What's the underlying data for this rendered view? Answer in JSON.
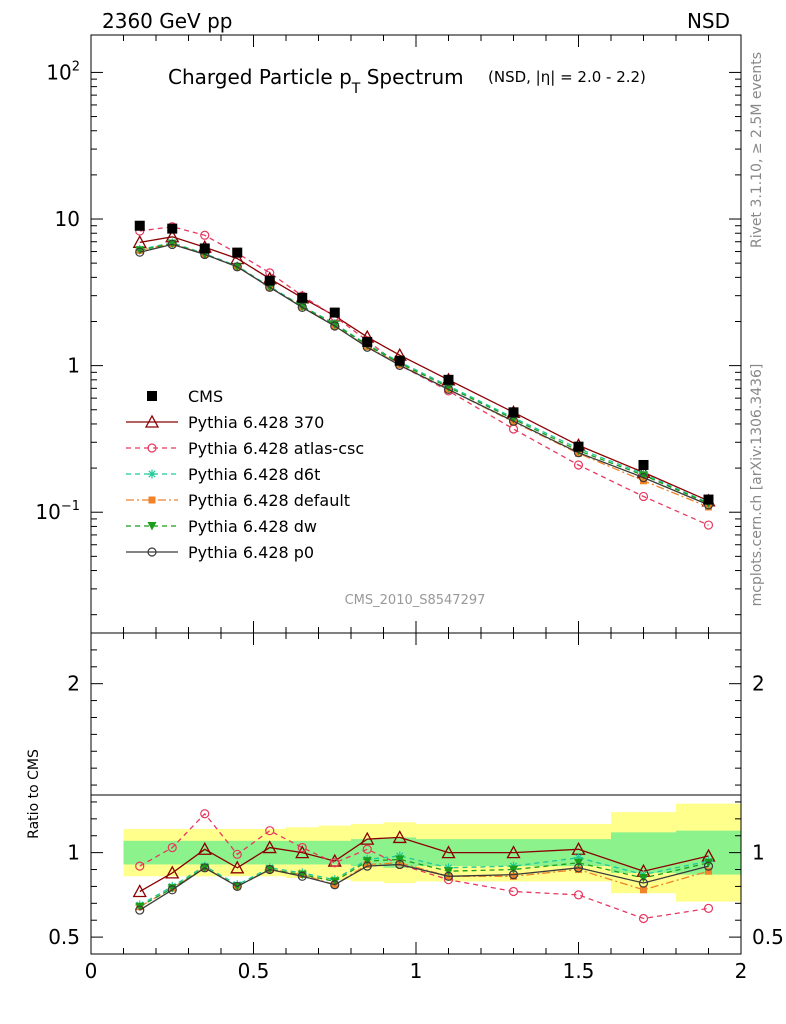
{
  "header": {
    "left": "2360 GeV pp",
    "right": "NSD"
  },
  "side_labels": {
    "rivet": "Rivet 3.1.10, ≥ 2.5M events",
    "mcplots": "mcplots.cern.ch [arXiv:1306.3436]"
  },
  "chart_data": {
    "type": "line",
    "title": "Charged Particle p",
    "title_subscript": "T",
    "title_suffix": " Spectrum",
    "title_note": "(NSD, |η| = 2.0 - 2.2)",
    "analysis_id": "CMS_2010_S8547297",
    "ratio_ylabel": "Ratio to CMS",
    "x_range": [
      0,
      2
    ],
    "x_ticks": [
      {
        "value": 0,
        "label": "0"
      },
      {
        "value": 0.5,
        "label": "0.5"
      },
      {
        "value": 1,
        "label": "1"
      },
      {
        "value": 1.5,
        "label": "1.5"
      },
      {
        "value": 2,
        "label": "2"
      }
    ],
    "main_y_scale": "log",
    "main_y_range": [
      0.015,
      180
    ],
    "main_y_ticks": [
      {
        "value": 100,
        "base": "10",
        "exp": "2"
      },
      {
        "value": 10,
        "base": "10",
        "exp": ""
      },
      {
        "value": 1,
        "base": "1",
        "exp": ""
      },
      {
        "value": 0.1,
        "base": "10",
        "exp": "−1"
      }
    ],
    "ratio_y_range": [
      0.4,
      2.3
    ],
    "ratio_y_ticks": [
      {
        "value": 0.5,
        "label": "0.5"
      },
      {
        "value": 1,
        "label": "1"
      },
      {
        "value": 2,
        "label": "2"
      }
    ],
    "legend_position": "middle-left",
    "x": [
      0.15,
      0.25,
      0.35,
      0.45,
      0.55,
      0.65,
      0.75,
      0.85,
      0.95,
      1.1,
      1.3,
      1.5,
      1.7,
      1.9
    ],
    "bin_edges": [
      0.1,
      0.2,
      0.3,
      0.4,
      0.5,
      0.6,
      0.7,
      0.8,
      0.9,
      1.0,
      1.2,
      1.4,
      1.6,
      1.8,
      2.0
    ],
    "data": {
      "name": "CMS",
      "color": "#000000",
      "values": [
        9.0,
        8.6,
        6.3,
        5.9,
        3.8,
        2.9,
        2.3,
        1.45,
        1.08,
        0.8,
        0.48,
        0.28,
        0.21,
        0.122
      ],
      "band_inner": [
        0.07,
        0.07,
        0.07,
        0.07,
        0.07,
        0.07,
        0.07,
        0.08,
        0.09,
        0.08,
        0.08,
        0.08,
        0.12,
        0.13
      ],
      "band_outer": [
        0.14,
        0.14,
        0.14,
        0.14,
        0.14,
        0.15,
        0.16,
        0.17,
        0.18,
        0.17,
        0.17,
        0.17,
        0.24,
        0.29
      ]
    },
    "series": [
      {
        "name": "Pythia 6.428 370",
        "color": "#8b0000",
        "dash": "",
        "marker": "triangle-open",
        "ratio": [
          0.77,
          0.88,
          1.02,
          0.91,
          1.03,
          1.0,
          0.95,
          1.08,
          1.09,
          1.0,
          1.0,
          1.02,
          0.89,
          0.98
        ]
      },
      {
        "name": "Pythia 6.428 atlas-csc",
        "color": "#e8375f",
        "dash": "5,4",
        "marker": "circle-open",
        "ratio": [
          0.92,
          1.03,
          1.23,
          0.99,
          1.13,
          1.03,
          0.94,
          1.02,
          0.93,
          0.84,
          0.77,
          0.75,
          0.61,
          0.67
        ]
      },
      {
        "name": "Pythia 6.428 d6t",
        "color": "#1ec99a",
        "dash": "5,4",
        "marker": "star",
        "ratio": [
          0.69,
          0.8,
          0.92,
          0.81,
          0.91,
          0.88,
          0.84,
          0.96,
          0.98,
          0.91,
          0.92,
          0.97,
          0.87,
          0.95
        ]
      },
      {
        "name": "Pythia 6.428 default",
        "color": "#f0822a",
        "dash": "8,3,2,3",
        "marker": "square",
        "ratio": [
          0.68,
          0.79,
          0.91,
          0.8,
          0.9,
          0.87,
          0.81,
          0.93,
          0.94,
          0.86,
          0.86,
          0.9,
          0.78,
          0.89
        ]
      },
      {
        "name": "Pythia 6.428 dw",
        "color": "#1a9e1a",
        "dash": "5,4",
        "marker": "triangle-down",
        "ratio": [
          0.68,
          0.79,
          0.91,
          0.8,
          0.9,
          0.87,
          0.83,
          0.95,
          0.96,
          0.89,
          0.9,
          0.94,
          0.85,
          0.94
        ]
      },
      {
        "name": "Pythia 6.428 p0",
        "color": "#3a3a3a",
        "dash": "",
        "marker": "circle-open",
        "ratio": [
          0.66,
          0.78,
          0.91,
          0.8,
          0.9,
          0.86,
          0.81,
          0.92,
          0.93,
          0.86,
          0.87,
          0.91,
          0.82,
          0.92
        ]
      }
    ]
  }
}
